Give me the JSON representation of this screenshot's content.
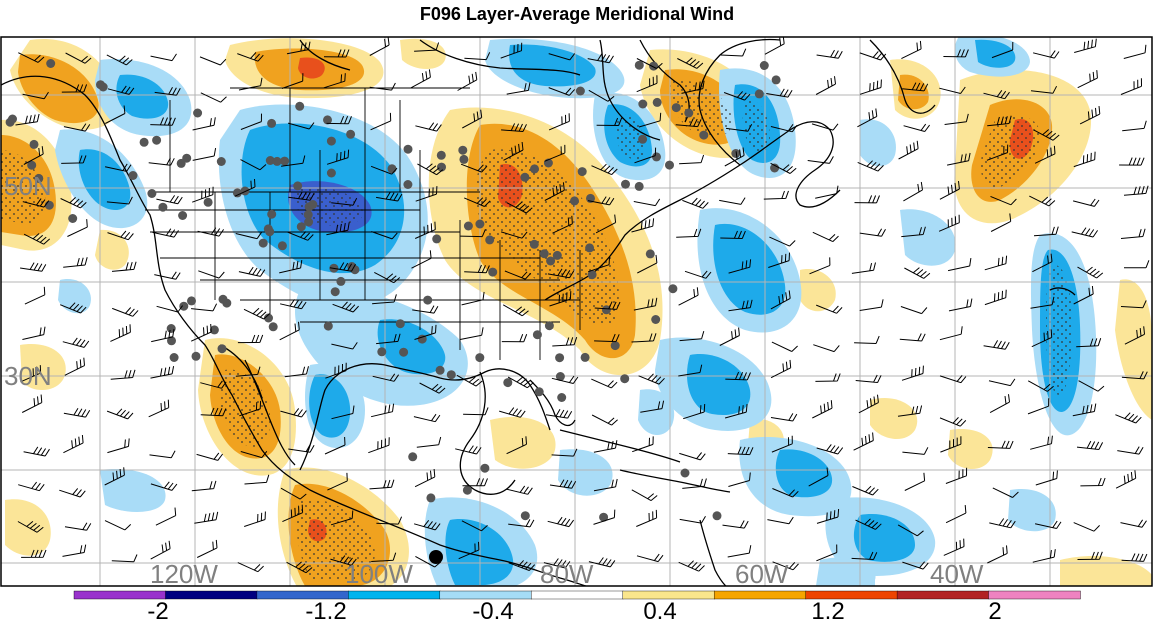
{
  "title": "F096 Layer-Average Meridional Wind",
  "lat_labels": [
    "50N",
    "30N"
  ],
  "lon_labels": [
    "120W",
    "100W",
    "80W",
    "60W",
    "40W"
  ],
  "colorbar": {
    "labels": [
      "-2",
      "-1.2",
      "-0.4",
      "0.4",
      "1.2",
      "2"
    ],
    "colors": [
      "#9933cc",
      "#000080",
      "#3366cc",
      "#00b4ee",
      "#a5dcf6",
      "#ffffff",
      "#fae68c",
      "#f5a500",
      "#ee4400",
      "#b22222",
      "#ee82c0"
    ]
  },
  "colors": {
    "strong_negative": "#3a5fcd",
    "negative": "#1eaaea",
    "weak_negative": "#a9dcf7",
    "weak_positive": "#fbe598",
    "positive": "#f0a21f",
    "strong_positive": "#e8501c",
    "station_dot": "#555555",
    "coast": "#000000",
    "grid": "#b4b4b4"
  }
}
